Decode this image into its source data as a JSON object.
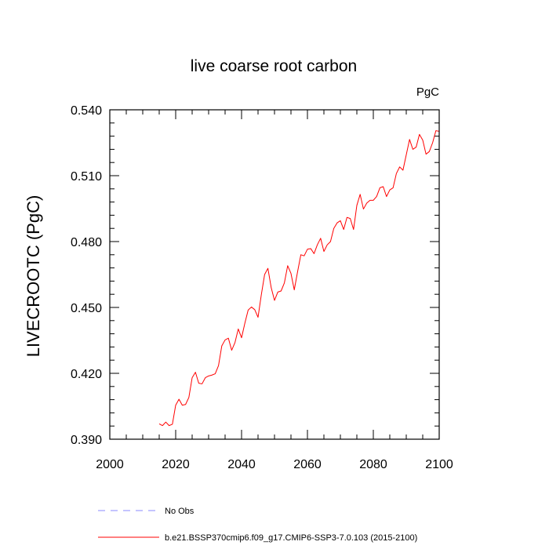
{
  "chart_data": {
    "type": "line",
    "title": "live coarse root carbon",
    "units_label": "PgC",
    "xlabel": "",
    "ylabel": "LIVECROOTC  (PgC)",
    "xlim": [
      2000,
      2100
    ],
    "ylim": [
      0.39,
      0.54
    ],
    "x_ticks": [
      2000,
      2020,
      2040,
      2060,
      2080,
      2100
    ],
    "x_tick_labels": [
      "2000",
      "2020",
      "2040",
      "2060",
      "2080",
      "2100"
    ],
    "y_ticks": [
      0.39,
      0.42,
      0.45,
      0.48,
      0.51,
      0.54
    ],
    "y_tick_labels": [
      "0.390",
      "0.420",
      "0.450",
      "0.480",
      "0.510",
      "0.540"
    ],
    "x_minor_step": 5,
    "y_minor_step": 0.006,
    "series": [
      {
        "name": "b.e21.BSSP370cmip6.f09_g17.CMIP6-SSP3-7.0.103 (2015-2100)",
        "color": "#ff0000",
        "x": [
          2015,
          2016,
          2017,
          2018,
          2019,
          2020,
          2021,
          2022,
          2023,
          2024,
          2025,
          2026,
          2027,
          2028,
          2029,
          2030,
          2031,
          2032,
          2033,
          2034,
          2035,
          2036,
          2037,
          2038,
          2039,
          2040,
          2041,
          2042,
          2043,
          2044,
          2045,
          2046,
          2047,
          2048,
          2049,
          2050,
          2051,
          2052,
          2053,
          2054,
          2055,
          2056,
          2057,
          2058,
          2059,
          2060,
          2061,
          2062,
          2063,
          2064,
          2065,
          2066,
          2067,
          2068,
          2069,
          2070,
          2071,
          2072,
          2073,
          2074,
          2075,
          2076,
          2077,
          2078,
          2079,
          2080,
          2081,
          2082,
          2083,
          2084,
          2085,
          2086,
          2087,
          2088,
          2089,
          2090,
          2091,
          2092,
          2093,
          2094,
          2095,
          2096,
          2097,
          2098,
          2099,
          2100
        ],
        "values": [
          0.397,
          0.3962,
          0.3978,
          0.3962,
          0.3968,
          0.4055,
          0.4082,
          0.4055,
          0.4058,
          0.409,
          0.418,
          0.4205,
          0.4155,
          0.4152,
          0.418,
          0.4188,
          0.4192,
          0.4198,
          0.4235,
          0.4325,
          0.4352,
          0.436,
          0.4305,
          0.434,
          0.4402,
          0.4362,
          0.4428,
          0.4488,
          0.4502,
          0.449,
          0.4455,
          0.4558,
          0.465,
          0.4678,
          0.459,
          0.4532,
          0.457,
          0.4575,
          0.4612,
          0.469,
          0.4655,
          0.458,
          0.4662,
          0.474,
          0.4735,
          0.4765,
          0.4768,
          0.4745,
          0.4785,
          0.4815,
          0.4755,
          0.4785,
          0.48,
          0.486,
          0.4885,
          0.4895,
          0.4855,
          0.491,
          0.4905,
          0.4855,
          0.4965,
          0.5015,
          0.4948,
          0.4975,
          0.4988,
          0.4988,
          0.5005,
          0.5045,
          0.505,
          0.5005,
          0.5035,
          0.5045,
          0.511,
          0.514,
          0.5125,
          0.5195,
          0.5265,
          0.522,
          0.523,
          0.5288,
          0.5262,
          0.5198,
          0.521,
          0.525,
          0.5305,
          0.5302
        ]
      }
    ],
    "legend": [
      {
        "label": "No Obs",
        "color": "#8888ff",
        "style": "dashed"
      },
      {
        "label": "b.e21.BSSP370cmip6.f09_g17.CMIP6-SSP3-7.0.103 (2015-2100)",
        "color": "#ff0000",
        "style": "solid"
      }
    ]
  }
}
